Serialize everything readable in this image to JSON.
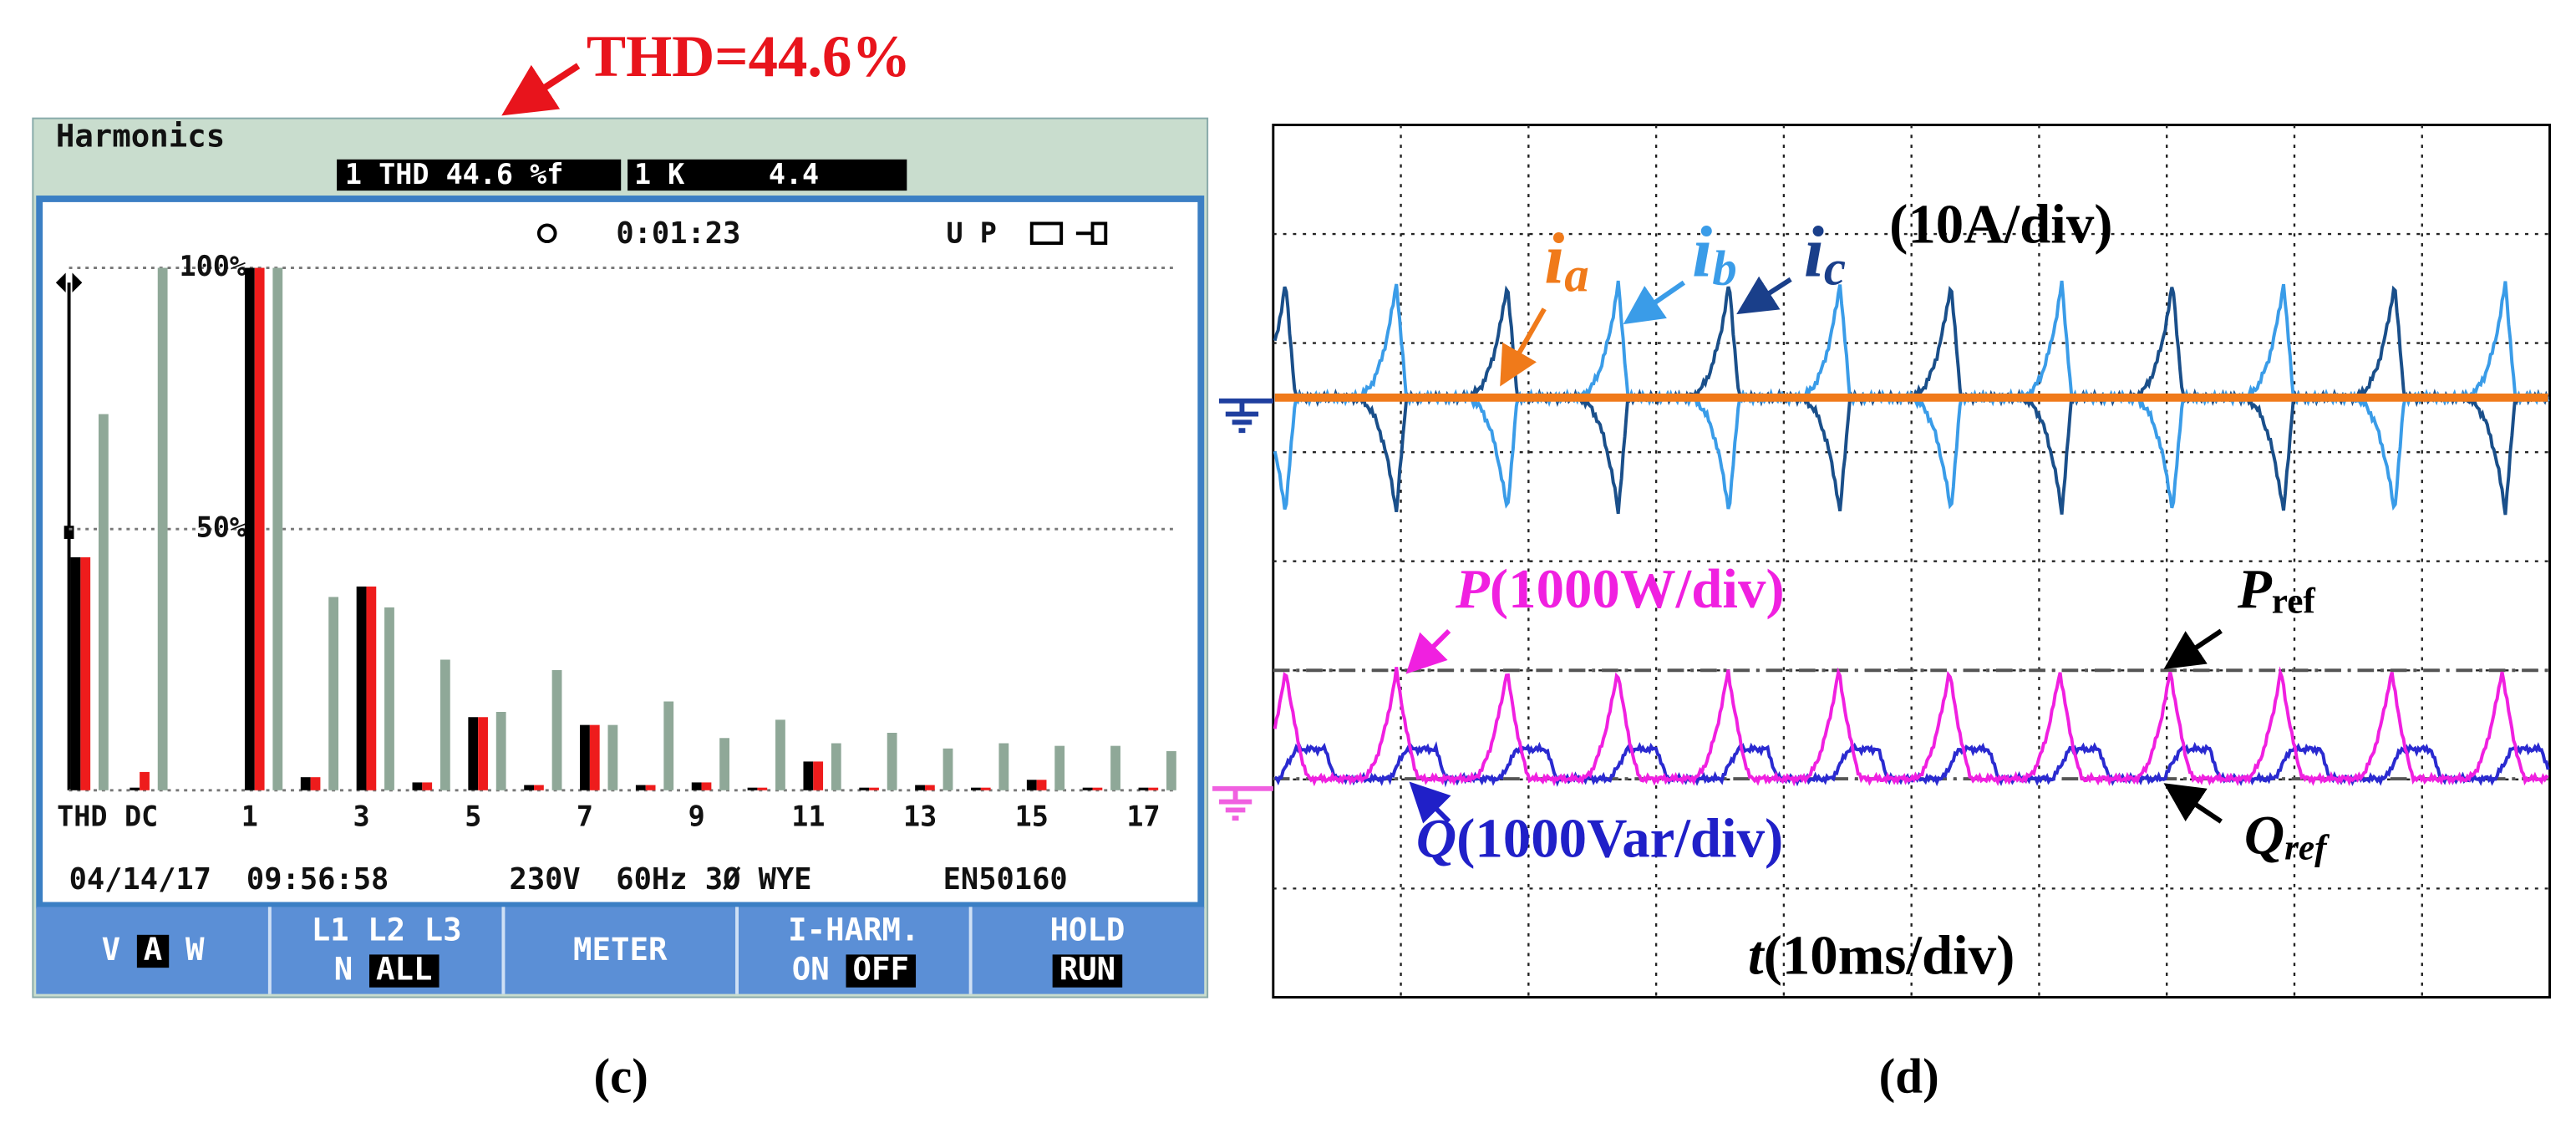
{
  "annotation": "THD=44.6%",
  "captions": [
    "(c)",
    "(d)"
  ],
  "analyzer": {
    "title": "Harmonics",
    "thd_box": "1 THD 44.6 %f",
    "k_box": "1 K     4.4",
    "timer": "0:01:23",
    "status": "U P",
    "date": "04/14/17",
    "time": "09:56:58",
    "mains": "230V  60Hz 3Ø WYE",
    "standard": "EN50160",
    "buttons": [
      [
        [
          {
            "text": "V"
          },
          {
            "text": "A",
            "selected": true
          },
          {
            "text": "W"
          }
        ]
      ],
      [
        [
          {
            "text": "L1 L2 L3"
          }
        ],
        [
          {
            "text": "N"
          },
          {
            "text": "ALL",
            "selected": true
          }
        ]
      ],
      [
        [
          {
            "text": "METER"
          }
        ]
      ],
      [
        [
          {
            "text": "I-HARM."
          }
        ],
        [
          {
            "text": "ON"
          },
          {
            "text": "OFF",
            "selected": true
          }
        ]
      ],
      [
        [
          {
            "text": "HOLD"
          }
        ],
        [
          {
            "text": "RUN",
            "selected": true
          }
        ]
      ]
    ]
  },
  "chart_data": {
    "type": "bar",
    "categories": [
      "THD",
      "DC",
      "1",
      null,
      "3",
      null,
      "5",
      null,
      "7",
      null,
      "9",
      null,
      "11",
      null,
      "13",
      null,
      "15",
      null,
      "17"
    ],
    "series": [
      {
        "color": "#000000",
        "values": [
          44.6,
          0.5,
          100,
          2.5,
          39,
          1.5,
          14,
          1,
          12.5,
          1,
          1.5,
          0.5,
          5.5,
          0.5,
          1,
          0.5,
          2,
          0.5,
          0.5
        ]
      },
      {
        "color": "#ee1c1c",
        "values": [
          44.6,
          3.5,
          100,
          2.5,
          39,
          1.5,
          14,
          1,
          12.5,
          1,
          1.5,
          0.5,
          5.5,
          0.5,
          1,
          0.5,
          2,
          0.5,
          0.5
        ]
      },
      {
        "color": "#8fa898",
        "values": [
          72,
          100,
          100,
          37,
          35,
          25,
          15,
          23,
          12.5,
          17,
          10,
          13.5,
          9,
          11,
          8,
          9,
          8.5,
          8.5,
          7.5
        ]
      }
    ],
    "ylim": [
      0,
      100
    ],
    "yticks": [
      {
        "value": 50,
        "label": "50%"
      },
      {
        "value": 100,
        "label": "100%"
      }
    ],
    "grid": true
  },
  "scope": {
    "ia": {
      "symbol": "i",
      "sub": "a"
    },
    "ib": {
      "symbol": "i",
      "sub": "b"
    },
    "ic": {
      "symbol": "i",
      "sub": "c"
    },
    "current_scale": "(10A/div)",
    "p_label": {
      "symbol": "P",
      "text": "(1000W/div)"
    },
    "q_label": {
      "symbol": "Q",
      "text": "(1000Var/div)"
    },
    "pref": {
      "symbol": "P",
      "sub": "ref"
    },
    "qref": {
      "symbol": "Q",
      "sub": "ref"
    },
    "time_scale": {
      "symbol": "t",
      "text": "(10ms/div)"
    }
  }
}
